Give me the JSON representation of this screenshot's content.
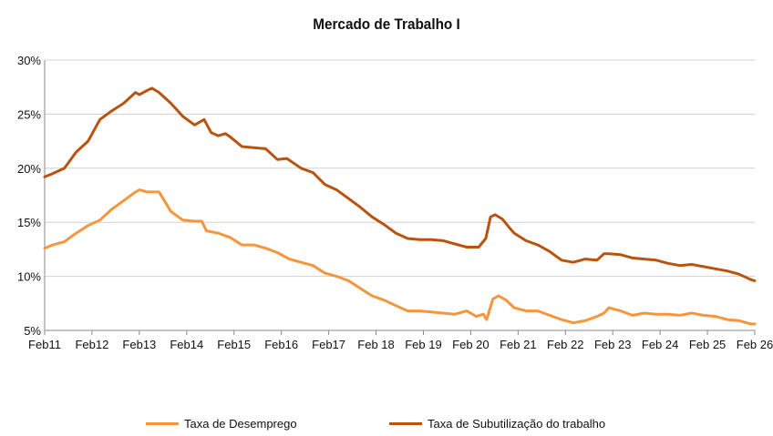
{
  "chart_data": {
    "type": "line",
    "title": "Mercado de Trabalho  I",
    "xlabel": "",
    "ylabel": "",
    "x_tick_labels": [
      "Feb11",
      "Feb12",
      "Feb13",
      "Feb14",
      "Feb15",
      "Feb16",
      "Feb17",
      "Feb 18",
      "Feb 19",
      "Feb 20",
      "Feb 21",
      "Feb 22",
      "Feb 23",
      "Feb 24",
      "Feb 25",
      "Feb 26"
    ],
    "y_tick_labels": [
      "5%",
      "10%",
      "15%",
      "20%",
      "25%",
      "30%"
    ],
    "ylim": [
      5,
      30
    ],
    "xlim": [
      2011.083,
      2026.083
    ],
    "grid": "horizontal",
    "legend_position": "bottom",
    "series": [
      {
        "name": "Taxa de Desemprego",
        "color": "#F5963C",
        "points": [
          [
            2011.083,
            12.6
          ],
          [
            2011.25,
            12.9
          ],
          [
            2011.5,
            13.2
          ],
          [
            2011.75,
            14.0
          ],
          [
            2012.0,
            14.7
          ],
          [
            2012.25,
            15.2
          ],
          [
            2012.5,
            16.2
          ],
          [
            2012.75,
            17.0
          ],
          [
            2013.0,
            17.8
          ],
          [
            2013.083,
            18.0
          ],
          [
            2013.25,
            17.8
          ],
          [
            2013.5,
            17.8
          ],
          [
            2013.75,
            16.0
          ],
          [
            2014.0,
            15.2
          ],
          [
            2014.25,
            15.1
          ],
          [
            2014.4,
            15.1
          ],
          [
            2014.5,
            14.2
          ],
          [
            2014.75,
            14.0
          ],
          [
            2015.0,
            13.6
          ],
          [
            2015.25,
            12.9
          ],
          [
            2015.5,
            12.9
          ],
          [
            2015.75,
            12.6
          ],
          [
            2016.0,
            12.2
          ],
          [
            2016.25,
            11.6
          ],
          [
            2016.5,
            11.3
          ],
          [
            2016.75,
            11.0
          ],
          [
            2017.0,
            10.3
          ],
          [
            2017.25,
            10.0
          ],
          [
            2017.5,
            9.6
          ],
          [
            2017.75,
            8.9
          ],
          [
            2018.0,
            8.2
          ],
          [
            2018.25,
            7.8
          ],
          [
            2018.5,
            7.3
          ],
          [
            2018.75,
            6.8
          ],
          [
            2019.0,
            6.8
          ],
          [
            2019.25,
            6.7
          ],
          [
            2019.5,
            6.6
          ],
          [
            2019.75,
            6.5
          ],
          [
            2020.0,
            6.8
          ],
          [
            2020.2,
            6.3
          ],
          [
            2020.35,
            6.5
          ],
          [
            2020.42,
            6.0
          ],
          [
            2020.55,
            7.9
          ],
          [
            2020.67,
            8.2
          ],
          [
            2020.83,
            7.8
          ],
          [
            2021.0,
            7.1
          ],
          [
            2021.25,
            6.8
          ],
          [
            2021.5,
            6.8
          ],
          [
            2021.75,
            6.4
          ],
          [
            2022.0,
            6.0
          ],
          [
            2022.25,
            5.7
          ],
          [
            2022.5,
            5.9
          ],
          [
            2022.75,
            6.3
          ],
          [
            2022.9,
            6.6
          ],
          [
            2023.0,
            7.1
          ],
          [
            2023.25,
            6.8
          ],
          [
            2023.5,
            6.4
          ],
          [
            2023.75,
            6.6
          ],
          [
            2024.0,
            6.5
          ],
          [
            2024.25,
            6.5
          ],
          [
            2024.5,
            6.4
          ],
          [
            2024.75,
            6.6
          ],
          [
            2025.0,
            6.4
          ],
          [
            2025.25,
            6.3
          ],
          [
            2025.5,
            6.0
          ],
          [
            2025.75,
            5.9
          ],
          [
            2026.0,
            5.6
          ],
          [
            2026.083,
            5.6
          ]
        ]
      },
      {
        "name": "Taxa de Subutilização do trabalho",
        "color": "#B8540F",
        "points": [
          [
            2011.083,
            19.2
          ],
          [
            2011.25,
            19.5
          ],
          [
            2011.5,
            20.0
          ],
          [
            2011.75,
            21.5
          ],
          [
            2012.0,
            22.5
          ],
          [
            2012.25,
            24.5
          ],
          [
            2012.5,
            25.3
          ],
          [
            2012.75,
            26.0
          ],
          [
            2013.0,
            27.0
          ],
          [
            2013.083,
            26.8
          ],
          [
            2013.25,
            27.2
          ],
          [
            2013.35,
            27.4
          ],
          [
            2013.5,
            27.0
          ],
          [
            2013.75,
            26.0
          ],
          [
            2014.0,
            24.8
          ],
          [
            2014.25,
            24.0
          ],
          [
            2014.45,
            24.5
          ],
          [
            2014.6,
            23.3
          ],
          [
            2014.75,
            23.0
          ],
          [
            2014.9,
            23.2
          ],
          [
            2015.0,
            22.9
          ],
          [
            2015.25,
            22.0
          ],
          [
            2015.5,
            21.9
          ],
          [
            2015.75,
            21.8
          ],
          [
            2016.0,
            20.8
          ],
          [
            2016.2,
            20.9
          ],
          [
            2016.5,
            20.0
          ],
          [
            2016.75,
            19.6
          ],
          [
            2017.0,
            18.5
          ],
          [
            2017.25,
            18.0
          ],
          [
            2017.5,
            17.2
          ],
          [
            2017.75,
            16.4
          ],
          [
            2018.0,
            15.5
          ],
          [
            2018.25,
            14.8
          ],
          [
            2018.5,
            14.0
          ],
          [
            2018.75,
            13.5
          ],
          [
            2019.0,
            13.4
          ],
          [
            2019.25,
            13.4
          ],
          [
            2019.5,
            13.3
          ],
          [
            2019.75,
            13.0
          ],
          [
            2020.0,
            12.7
          ],
          [
            2020.25,
            12.7
          ],
          [
            2020.4,
            13.5
          ],
          [
            2020.5,
            15.5
          ],
          [
            2020.6,
            15.7
          ],
          [
            2020.75,
            15.3
          ],
          [
            2020.9,
            14.5
          ],
          [
            2021.0,
            14.0
          ],
          [
            2021.25,
            13.3
          ],
          [
            2021.5,
            12.9
          ],
          [
            2021.75,
            12.3
          ],
          [
            2022.0,
            11.5
          ],
          [
            2022.25,
            11.3
          ],
          [
            2022.5,
            11.6
          ],
          [
            2022.75,
            11.5
          ],
          [
            2022.9,
            12.1
          ],
          [
            2023.0,
            12.1
          ],
          [
            2023.25,
            12.0
          ],
          [
            2023.5,
            11.7
          ],
          [
            2023.75,
            11.6
          ],
          [
            2024.0,
            11.5
          ],
          [
            2024.25,
            11.2
          ],
          [
            2024.5,
            11.0
          ],
          [
            2024.75,
            11.1
          ],
          [
            2025.0,
            10.9
          ],
          [
            2025.25,
            10.7
          ],
          [
            2025.5,
            10.5
          ],
          [
            2025.75,
            10.2
          ],
          [
            2026.0,
            9.7
          ],
          [
            2026.083,
            9.6
          ]
        ]
      }
    ]
  }
}
